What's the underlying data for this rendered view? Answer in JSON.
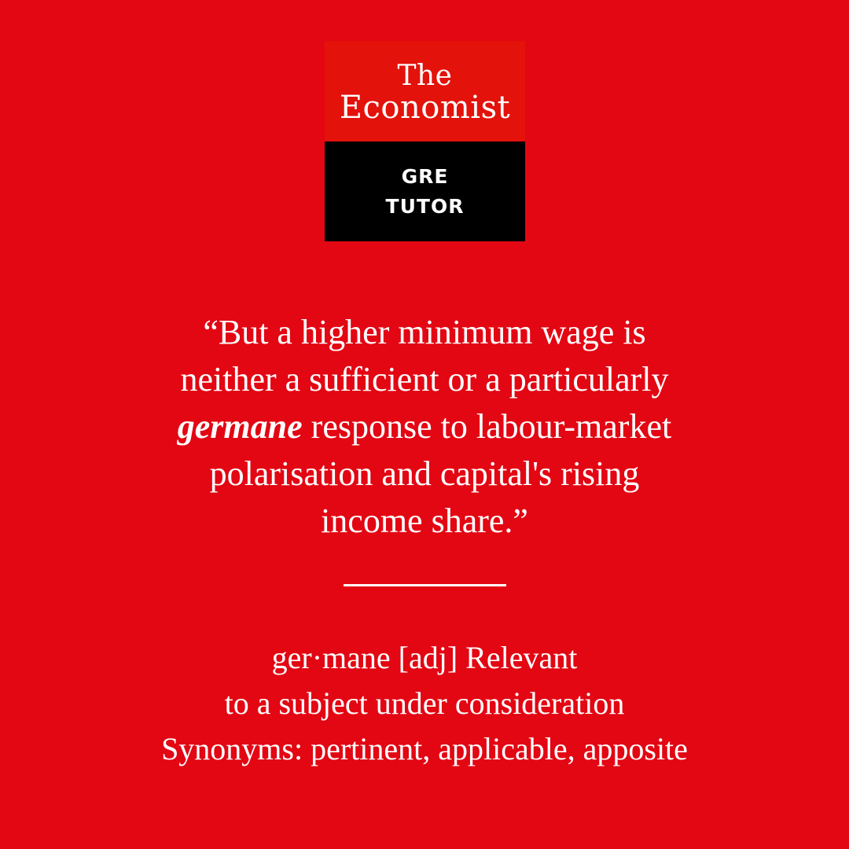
{
  "logo": {
    "line1": "The",
    "line2": "Economist",
    "sub1": "GRE",
    "sub2": "TUTOR"
  },
  "quote": {
    "line1": "“But a higher minimum wage is",
    "line2": "neither a sufficient or a particularly",
    "keyword": "germane",
    "line3_rest": " response to labour-market",
    "line4": "polarisation and capital's rising",
    "line5": "income share.”"
  },
  "definition": {
    "line1": "ger·mane [adj] Relevant",
    "line2": "to a subject under consideration",
    "line3": "Synonyms: pertinent, applicable, apposite"
  },
  "colors": {
    "background": "#e30613",
    "logo_top": "#e3120b",
    "logo_bottom": "#000000",
    "text": "#ffffff"
  }
}
